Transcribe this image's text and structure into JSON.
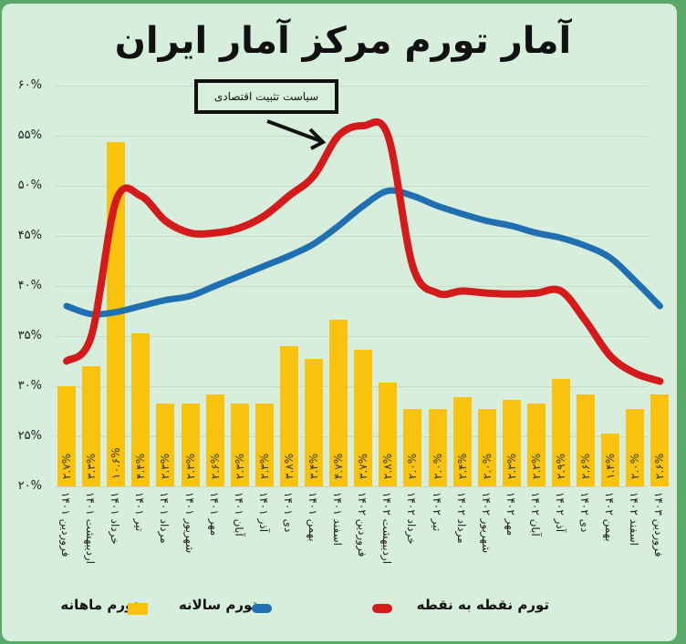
{
  "title": "آمار تورم مرکز آمار ایران",
  "annotation": "سیاست تثبیت اقتصادی",
  "legend": [
    {
      "label": "تورم نقطه به نقطه",
      "color": "#d41a1a",
      "shape": "line"
    },
    {
      "label": "تورم سالانه",
      "color": "#1f6fb2",
      "shape": "line"
    },
    {
      "label": "تورم ماهانه",
      "color": "#f9c20c",
      "shape": "box"
    }
  ],
  "y_ticks": [
    "۶۰%",
    "۵۵%",
    "۵۰%",
    "۴۵%",
    "۴۰%",
    "۳۵%",
    "۳۰%",
    "۲۵%",
    "۲۰%"
  ],
  "colors": {
    "background": "#d6eedb",
    "frame": "#5aa86a",
    "bar": "#f9c20c",
    "point_to_point": "#d41a1a",
    "annual": "#1f6fb2"
  },
  "chart_data": {
    "type": "bar+line",
    "title": "آمار تورم مرکز آمار ایران",
    "ylabel": "",
    "ylim": [
      20,
      60
    ],
    "grid": true,
    "legend_position": "bottom",
    "categories": [
      "فروردین ۱۴۰۱",
      "اردیبهشت ۱۴۰۱",
      "خرداد ۱۴۰۱",
      "تیر ۱۴۰۱",
      "مرداد ۱۴۰۱",
      "شهریور ۱۴۰۱",
      "مهر ۱۴۰۱",
      "آبان ۱۴۰۱",
      "آذر ۱۴۰۱",
      "دی ۱۴۰۱",
      "بهمن ۱۴۰۱",
      "اسفند ۱۴۰۱",
      "فروردین ۱۴۰۲",
      "اردیبهشت ۱۴۰۲",
      "خرداد ۱۴۰۲",
      "تیر ۱۴۰۲",
      "مرداد ۱۴۰۲",
      "شهریور ۱۴۰۲",
      "مهر ۱۴۰۲",
      "آبان ۱۴۰۲",
      "آذر ۱۴۰۲",
      "دی ۱۴۰۲",
      "بهمن ۱۴۰۲",
      "اسفند ۱۴۰۲",
      "فروردین ۱۴۰۳"
    ],
    "series": [
      {
        "name": "تورم ماهانه",
        "type": "bar",
        "values": [
          2.7,
          3.3,
          10.6,
          4.4,
          2.3,
          2.3,
          2.6,
          2.3,
          2.3,
          3.8,
          3.4,
          4.7,
          3.7,
          2.8,
          2.0,
          2.0,
          2.4,
          2.0,
          2.3,
          2.2,
          2.9,
          2.6,
          1.4,
          2.0,
          2.6
        ],
        "labels": [
          "۲.۷%",
          "۳.۳%",
          "۱۰.۶%",
          "۴.۴%",
          "۲.۳%",
          "۲.۳%",
          "۲.۶%",
          "۲.۳%",
          "۲.۳%",
          "۳.۸%",
          "۳.۴%",
          "۴.۷%",
          "۳.۷%",
          "۲.۸%",
          "۲.۰%",
          "۲.۰%",
          "۲.۴%",
          "۲.۰%",
          "۲.۳%",
          "۲.۲%",
          "۲.۹%",
          "۲.۶%",
          "۱.۴%",
          "۲.۰%",
          "۲.۶%"
        ],
        "display_heights_pct": [
          30,
          32,
          54.4,
          35.3,
          28.3,
          28.3,
          29.2,
          28.3,
          28.3,
          34,
          32.7,
          36.6,
          33.6,
          30.4,
          27.7,
          27.7,
          28.9,
          27.7,
          28.6,
          28.3,
          30.7,
          29.2,
          25.3,
          27.7,
          29.2
        ]
      },
      {
        "name": "تورم سالانه",
        "type": "line",
        "values": [
          38.0,
          37.2,
          37.4,
          38.0,
          38.6,
          39.0,
          40.0,
          41.0,
          42.0,
          43.0,
          44.2,
          46.0,
          48.0,
          49.5,
          49.0,
          48.0,
          47.2,
          46.5,
          46.0,
          45.3,
          44.8,
          44.0,
          42.8,
          40.5,
          38.0
        ]
      },
      {
        "name": "تورم نقطه به نقطه",
        "type": "line",
        "values": [
          32.5,
          35.0,
          48.5,
          49.0,
          46.5,
          45.3,
          45.3,
          45.8,
          47.0,
          49.0,
          51.0,
          55.0,
          56.0,
          55.0,
          42.0,
          39.3,
          39.5,
          39.3,
          39.2,
          39.3,
          39.5,
          36.5,
          33.0,
          31.3,
          30.5
        ]
      }
    ]
  }
}
